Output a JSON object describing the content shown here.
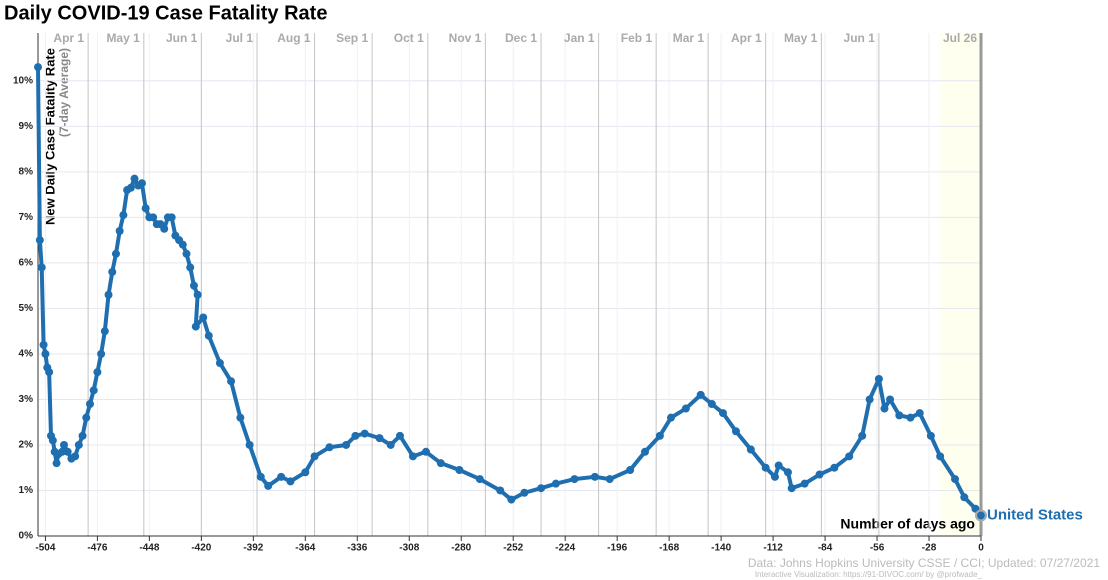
{
  "chart_data": {
    "type": "line",
    "title": "Daily COVID-19 Case Fatality Rate",
    "y_label": "New Daily Case Fatality Rate",
    "y_sublabel": "(7-day Average)",
    "x_label": "Number of days ago",
    "source": "Data: Johns Hopkins University CSSE / CCI; Updated: 07/27/2021",
    "credit": "Interactive Visualization: https://91-DIVOC.com/ by @profwade_",
    "xlim": [
      -508,
      0
    ],
    "ylim": [
      0,
      11.05
    ],
    "xticks": [
      -504,
      -476,
      -448,
      -420,
      -392,
      -364,
      -336,
      -308,
      -280,
      -252,
      -224,
      -196,
      -168,
      -140,
      -112,
      -84,
      -56,
      -28,
      0
    ],
    "yticks": [
      {
        "value": 0,
        "label": "0%"
      },
      {
        "value": 1,
        "label": "1%"
      },
      {
        "value": 2,
        "label": "2%"
      },
      {
        "value": 3,
        "label": "3%"
      },
      {
        "value": 4,
        "label": "4%"
      },
      {
        "value": 5,
        "label": "5%"
      },
      {
        "value": 6,
        "label": "6%"
      },
      {
        "value": 7,
        "label": "7%"
      },
      {
        "value": 8,
        "label": "8%"
      },
      {
        "value": 9,
        "label": "9%"
      },
      {
        "value": 10,
        "label": "10%"
      }
    ],
    "x2ticks": [
      {
        "value": -481,
        "label": "Apr 1"
      },
      {
        "value": -451,
        "label": "May 1"
      },
      {
        "value": -420,
        "label": "Jun 1"
      },
      {
        "value": -390,
        "label": "Jul 1"
      },
      {
        "value": -359,
        "label": "Aug 1"
      },
      {
        "value": -328,
        "label": "Sep 1"
      },
      {
        "value": -298,
        "label": "Oct 1"
      },
      {
        "value": -267,
        "label": "Nov 1"
      },
      {
        "value": -237,
        "label": "Dec 1"
      },
      {
        "value": -206,
        "label": "Jan 1"
      },
      {
        "value": -175,
        "label": "Feb 1"
      },
      {
        "value": -147,
        "label": "Mar 1"
      },
      {
        "value": -116,
        "label": "Apr 1"
      },
      {
        "value": -86,
        "label": "May 1"
      },
      {
        "value": -55,
        "label": "Jun 1"
      },
      {
        "value": 0,
        "label": "Jul 26"
      }
    ],
    "grid": true,
    "x": [
      -508,
      -507,
      -506,
      -505,
      -504,
      -503,
      -502,
      -501,
      -500,
      -499,
      -498,
      -497,
      -495,
      -494,
      -492,
      -490,
      -488,
      -486,
      -484,
      -482,
      -480,
      -478,
      -476,
      -474,
      -472,
      -470,
      -468,
      -466,
      -464,
      -462,
      -460,
      -458,
      -456,
      -454,
      -452,
      -450,
      -448,
      -446,
      -444,
      -442,
      -440,
      -438,
      -436,
      -434,
      -432,
      -430,
      -428,
      -426,
      -424,
      -422,
      -423,
      -419,
      -416,
      -410,
      -404,
      -399,
      -394,
      -388,
      -384,
      -377,
      -372,
      -364,
      -359,
      -351,
      -342,
      -337,
      -332,
      -324,
      -318,
      -313,
      -306,
      -299,
      -291,
      -281,
      -270,
      -259,
      -253,
      -246,
      -237,
      -229,
      -219,
      -208,
      -200,
      -189,
      -181,
      -173,
      -167,
      -159,
      -151,
      -145,
      -139,
      -132,
      -124,
      -116,
      -111,
      -109,
      -104,
      -102,
      -95,
      -87,
      -79,
      -71,
      -64,
      -60,
      -55,
      -52,
      -49,
      -44,
      -38,
      -33,
      -27,
      -22,
      -14,
      -9,
      -3,
      0
    ],
    "series": [
      {
        "name": "United States",
        "color": "#1f6fb0",
        "values": [
          10.3,
          6.5,
          5.9,
          4.2,
          4.0,
          3.7,
          3.6,
          2.2,
          2.1,
          1.85,
          1.6,
          1.8,
          1.85,
          2.0,
          1.85,
          1.7,
          1.75,
          2.0,
          2.2,
          2.6,
          2.9,
          3.2,
          3.6,
          4.0,
          4.5,
          5.3,
          5.8,
          6.2,
          6.7,
          7.05,
          7.6,
          7.65,
          7.85,
          7.7,
          7.75,
          7.2,
          7.0,
          7.0,
          6.85,
          6.85,
          6.75,
          7.0,
          7.0,
          6.6,
          6.5,
          6.4,
          6.2,
          5.9,
          5.5,
          5.3,
          4.6,
          4.8,
          4.4,
          3.8,
          3.4,
          2.6,
          2.0,
          1.3,
          1.1,
          1.3,
          1.2,
          1.4,
          1.75,
          1.95,
          2.0,
          2.2,
          2.25,
          2.15,
          2.0,
          2.2,
          1.75,
          1.85,
          1.6,
          1.45,
          1.25,
          1.0,
          0.8,
          0.95,
          1.05,
          1.15,
          1.25,
          1.3,
          1.25,
          1.45,
          1.85,
          2.2,
          2.6,
          2.8,
          3.1,
          2.9,
          2.7,
          2.3,
          1.9,
          1.5,
          1.3,
          1.55,
          1.4,
          1.05,
          1.15,
          1.35,
          1.5,
          1.75,
          2.2,
          3.0,
          3.45,
          2.8,
          3.0,
          2.65,
          2.6,
          2.7,
          2.2,
          1.75,
          1.25,
          0.85,
          0.6,
          0.45
        ]
      }
    ]
  }
}
